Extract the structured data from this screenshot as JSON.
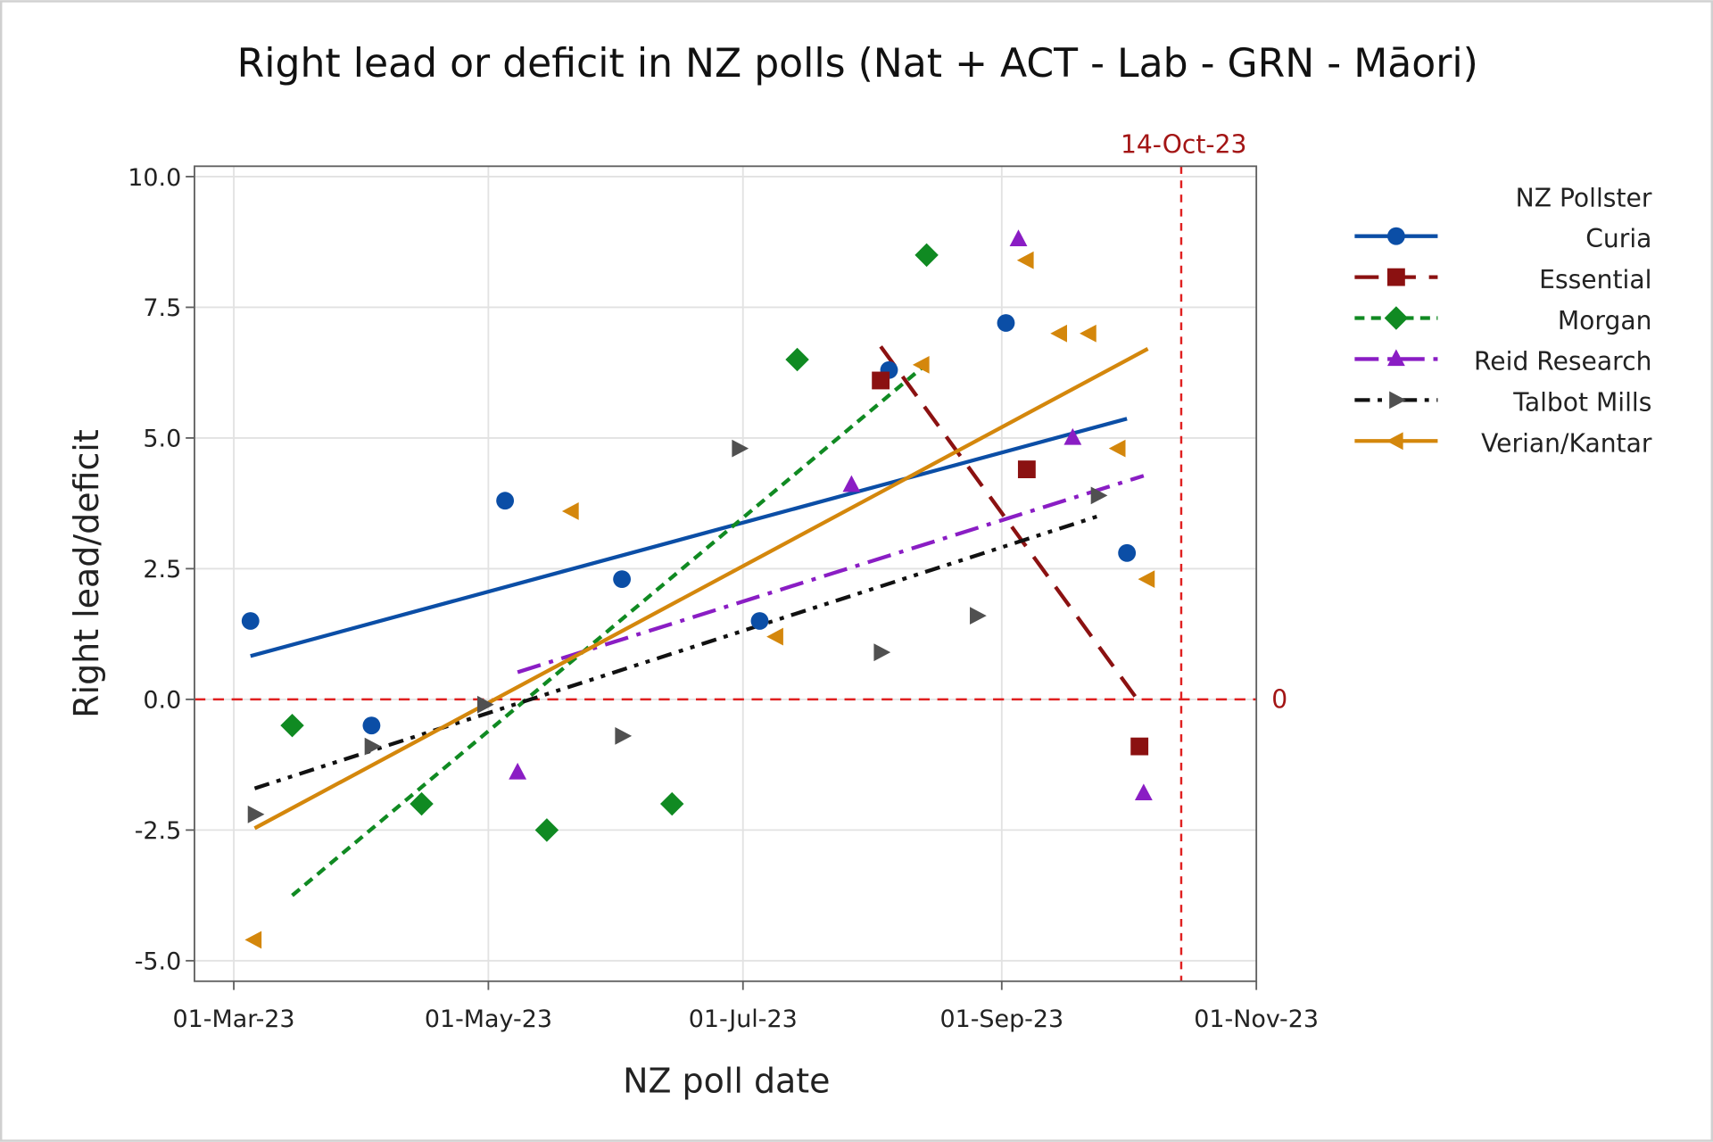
{
  "chart_data": {
    "type": "scatter",
    "title": "Right lead or deficit in NZ polls (Nat + ACT - Lab - GRN - Māori)",
    "xlabel": "NZ poll date",
    "ylabel": "Right lead/deficit",
    "xlim": [
      "2023-03-01",
      "2023-11-01"
    ],
    "ylim": [
      -5.5,
      10.3
    ],
    "x_ticks": [
      {
        "date": "2023-03-01",
        "label": "01-Mar-23"
      },
      {
        "date": "2023-05-01",
        "label": "01-May-23"
      },
      {
        "date": "2023-07-01",
        "label": "01-Jul-23"
      },
      {
        "date": "2023-09-01",
        "label": "01-Sep-23"
      },
      {
        "date": "2023-11-01",
        "label": "01-Nov-23"
      }
    ],
    "y_ticks": [
      {
        "value": 10,
        "label": "10.0"
      },
      {
        "value": 7.5,
        "label": "7.5"
      },
      {
        "value": 5,
        "label": "5.0"
      },
      {
        "value": 2.5,
        "label": "2.5"
      },
      {
        "value": 0,
        "label": "0.0"
      },
      {
        "value": -2.5,
        "label": "-2.5"
      },
      {
        "value": -5,
        "label": "-5.0"
      }
    ],
    "grid": true,
    "legend": {
      "title": "NZ Pollster",
      "position": "right"
    },
    "reference_lines": [
      {
        "orientation": "vertical",
        "date": "2023-10-14",
        "label": "14-Oct-23",
        "color": "#e02020"
      },
      {
        "orientation": "horizontal",
        "value": 0,
        "label": "0",
        "color": "#e02020"
      }
    ],
    "trendlines": "linear fit per pollster",
    "series": [
      {
        "name": "Curia",
        "color": "#0b4ea6",
        "marker": "circle",
        "line": "solid",
        "points": [
          [
            "2023-03-05",
            1.5
          ],
          [
            "2023-04-03",
            -0.5
          ],
          [
            "2023-05-05",
            3.8
          ],
          [
            "2023-06-02",
            2.3
          ],
          [
            "2023-07-05",
            1.5
          ],
          [
            "2023-08-05",
            6.3
          ],
          [
            "2023-09-02",
            7.2
          ],
          [
            "2023-10-01",
            2.8
          ]
        ]
      },
      {
        "name": "Essential",
        "color": "#8b1111",
        "marker": "square",
        "line": "long-dash",
        "points": [
          [
            "2023-08-03",
            6.1
          ],
          [
            "2023-09-07",
            4.4
          ],
          [
            "2023-10-04",
            -0.9
          ]
        ]
      },
      {
        "name": "Morgan",
        "color": "#108a22",
        "marker": "diamond",
        "line": "dash",
        "points": [
          [
            "2023-03-15",
            -0.5
          ],
          [
            "2023-04-15",
            -2.0
          ],
          [
            "2023-05-15",
            -2.5
          ],
          [
            "2023-06-14",
            -2.0
          ],
          [
            "2023-07-14",
            6.5
          ],
          [
            "2023-08-14",
            8.5
          ]
        ]
      },
      {
        "name": "Reid Research",
        "color": "#8a1dc4",
        "marker": "triangle-up",
        "line": "dash-dot",
        "points": [
          [
            "2023-05-08",
            -1.4
          ],
          [
            "2023-07-27",
            4.1
          ],
          [
            "2023-09-05",
            8.8
          ],
          [
            "2023-09-18",
            5.0
          ],
          [
            "2023-10-05",
            -1.8
          ]
        ]
      },
      {
        "name": "Talbot Mills",
        "color": "#505050",
        "marker": "triangle-right",
        "line": "dash-dot-dot",
        "points": [
          [
            "2023-03-06",
            -2.2
          ],
          [
            "2023-04-03",
            -0.9
          ],
          [
            "2023-04-30",
            -0.1
          ],
          [
            "2023-06-02",
            -0.7
          ],
          [
            "2023-06-30",
            4.8
          ],
          [
            "2023-08-03",
            0.9
          ],
          [
            "2023-08-26",
            1.6
          ],
          [
            "2023-09-24",
            3.9
          ]
        ]
      },
      {
        "name": "Verian/Kantar",
        "color": "#d4870c",
        "marker": "triangle-left",
        "line": "solid",
        "points": [
          [
            "2023-03-06",
            -4.6
          ],
          [
            "2023-05-21",
            3.6
          ],
          [
            "2023-07-09",
            1.2
          ],
          [
            "2023-08-13",
            6.4
          ],
          [
            "2023-09-07",
            8.4
          ],
          [
            "2023-09-15",
            7.0
          ],
          [
            "2023-09-22",
            7.0
          ],
          [
            "2023-09-29",
            4.8
          ],
          [
            "2023-10-06",
            2.3
          ]
        ]
      }
    ]
  }
}
